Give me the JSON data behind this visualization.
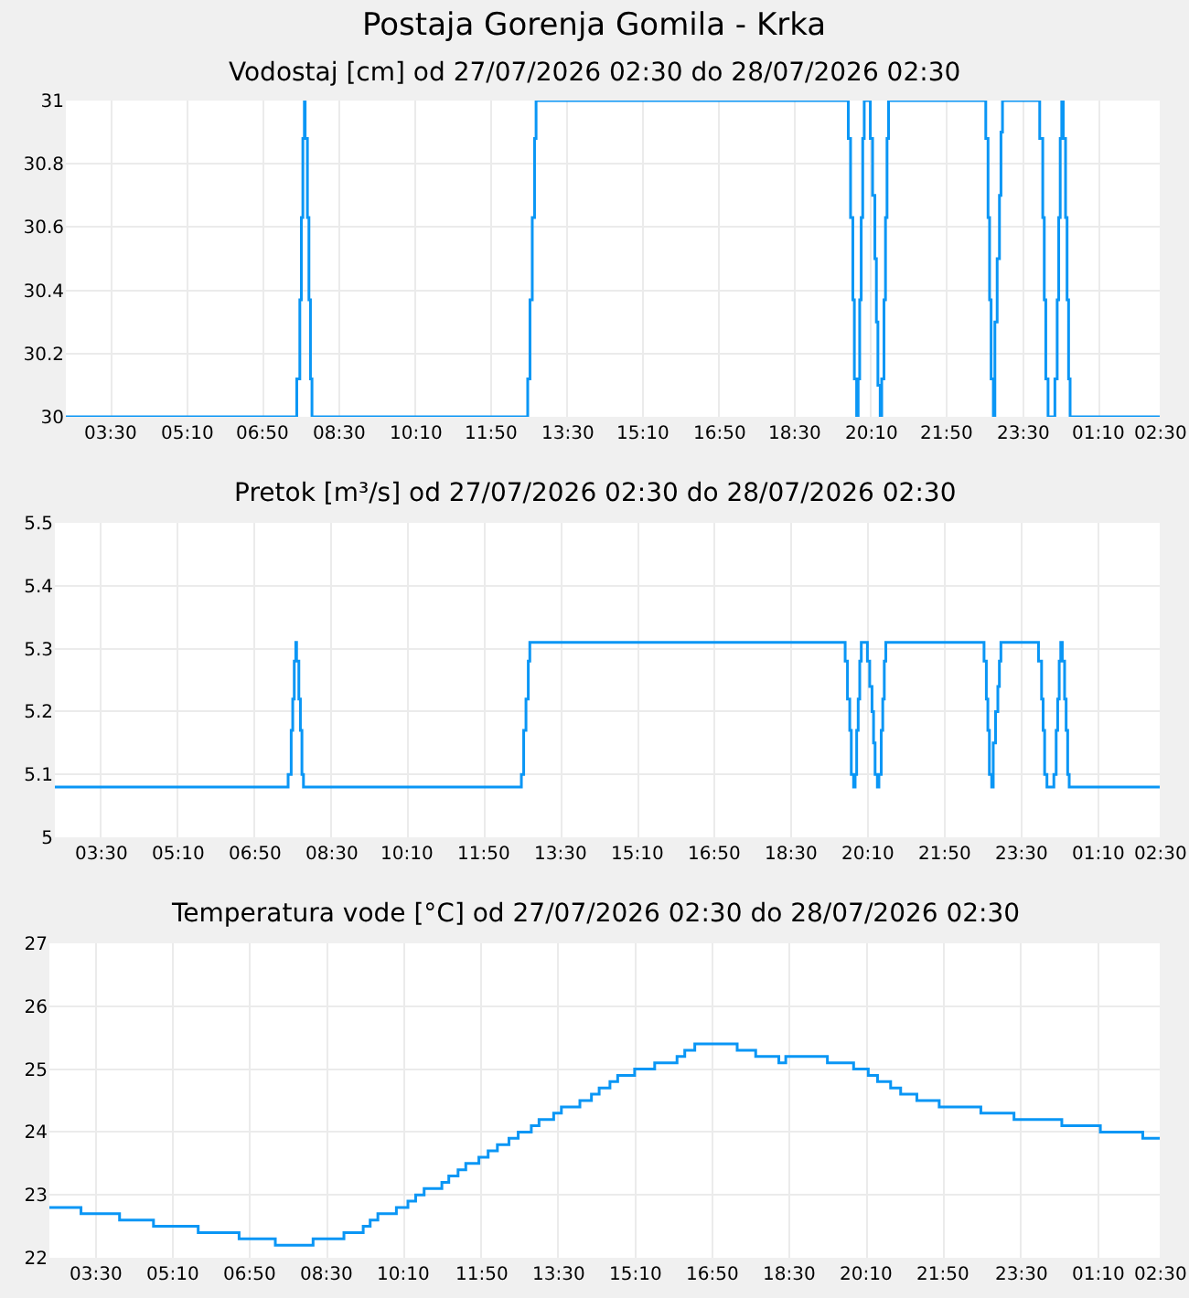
{
  "chart_data": [
    {
      "type": "step",
      "title": "Postaja Gorenja Gomila - Krka",
      "subtitle": "Vodostaj [cm] od 27/07/2026 02:30 do 28/07/2026 02:30",
      "x": [
        "2026-07-27T02:30",
        "2026-07-27T07:34",
        "2026-07-27T07:38",
        "2026-07-27T07:40",
        "2026-07-27T07:42",
        "2026-07-27T07:44",
        "2026-07-27T07:45",
        "2026-07-27T07:48",
        "2026-07-27T07:50",
        "2026-07-27T07:52",
        "2026-07-27T07:54",
        "2026-07-27T12:38",
        "2026-07-27T12:41",
        "2026-07-27T12:44",
        "2026-07-27T12:47",
        "2026-07-27T12:49",
        "2026-07-27T19:40",
        "2026-07-27T19:43",
        "2026-07-27T19:46",
        "2026-07-27T19:48",
        "2026-07-27T19:51",
        "2026-07-27T19:53",
        "2026-07-27T19:55",
        "2026-07-27T19:57",
        "2026-07-27T19:59",
        "2026-07-27T20:01",
        "2026-07-27T20:09",
        "2026-07-27T20:12",
        "2026-07-27T20:15",
        "2026-07-27T20:17",
        "2026-07-27T20:19",
        "2026-07-27T20:22",
        "2026-07-27T20:24",
        "2026-07-27T20:27",
        "2026-07-27T20:29",
        "2026-07-27T20:31",
        "2026-07-27T20:33",
        "2026-07-27T22:41",
        "2026-07-27T22:44",
        "2026-07-27T22:46",
        "2026-07-27T22:48",
        "2026-07-27T22:51",
        "2026-07-27T22:53",
        "2026-07-27T22:56",
        "2026-07-27T22:59",
        "2026-07-27T23:01",
        "2026-07-27T23:03",
        "2026-07-27T23:52",
        "2026-07-27T23:56",
        "2026-07-27T23:58",
        "2026-07-28T00:00",
        "2026-07-28T00:03",
        "2026-07-28T00:12",
        "2026-07-28T00:15",
        "2026-07-28T00:17",
        "2026-07-28T00:19",
        "2026-07-28T00:21",
        "2026-07-28T00:23",
        "2026-07-28T00:26",
        "2026-07-28T00:28",
        "2026-07-28T00:30",
        "2026-07-28T00:32",
        "2026-07-28T02:30"
      ],
      "series": [
        {
          "color": "#0a96f5",
          "values": [
            30,
            30.12,
            30.37,
            30.63,
            30.88,
            31,
            30.88,
            30.63,
            30.37,
            30.12,
            30,
            30.12,
            30.37,
            30.63,
            30.88,
            31,
            30.88,
            30.63,
            30.37,
            30.12,
            30,
            30.12,
            30.37,
            30.63,
            30.88,
            31,
            30.88,
            30.7,
            30.5,
            30.3,
            30.1,
            30,
            30.12,
            30.37,
            30.63,
            30.88,
            31,
            30.88,
            30.63,
            30.37,
            30.12,
            30,
            30.3,
            30.5,
            30.7,
            30.9,
            31,
            30.88,
            30.63,
            30.37,
            30.12,
            30,
            30.12,
            30.37,
            30.63,
            30.88,
            31,
            30.88,
            30.63,
            30.37,
            30.12,
            30,
            30
          ]
        }
      ],
      "xlim": [
        "2026-07-27T02:30",
        "2026-07-28T02:30"
      ],
      "xticks": [
        {
          "value": "2026-07-27T03:30",
          "label": "03:30"
        },
        {
          "value": "2026-07-27T05:10",
          "label": "05:10"
        },
        {
          "value": "2026-07-27T06:50",
          "label": "06:50"
        },
        {
          "value": "2026-07-27T08:30",
          "label": "08:30"
        },
        {
          "value": "2026-07-27T10:10",
          "label": "10:10"
        },
        {
          "value": "2026-07-27T11:50",
          "label": "11:50"
        },
        {
          "value": "2026-07-27T13:30",
          "label": "13:30"
        },
        {
          "value": "2026-07-27T15:10",
          "label": "15:10"
        },
        {
          "value": "2026-07-27T16:50",
          "label": "16:50"
        },
        {
          "value": "2026-07-27T18:30",
          "label": "18:30"
        },
        {
          "value": "2026-07-27T20:10",
          "label": "20:10"
        },
        {
          "value": "2026-07-27T21:50",
          "label": "21:50"
        },
        {
          "value": "2026-07-27T23:30",
          "label": "23:30"
        },
        {
          "value": "2026-07-28T01:10",
          "label": "01:10"
        },
        {
          "value": "2026-07-28T02:30",
          "label": "02:30"
        }
      ],
      "ylim": [
        30,
        31
      ],
      "yticks": [
        30,
        30.2,
        30.4,
        30.6,
        30.8,
        31
      ],
      "grid": true
    },
    {
      "type": "step",
      "title": "Pretok [m³/s] od 27/07/2026 02:30 do 28/07/2026 02:30",
      "x": [
        "2026-07-27T02:30",
        "2026-07-27T07:34",
        "2026-07-27T07:38",
        "2026-07-27T07:40",
        "2026-07-27T07:42",
        "2026-07-27T07:44",
        "2026-07-27T07:45",
        "2026-07-27T07:48",
        "2026-07-27T07:50",
        "2026-07-27T07:52",
        "2026-07-27T07:54",
        "2026-07-27T12:38",
        "2026-07-27T12:41",
        "2026-07-27T12:44",
        "2026-07-27T12:47",
        "2026-07-27T12:49",
        "2026-07-27T19:40",
        "2026-07-27T19:43",
        "2026-07-27T19:46",
        "2026-07-27T19:48",
        "2026-07-27T19:51",
        "2026-07-27T19:53",
        "2026-07-27T19:55",
        "2026-07-27T19:57",
        "2026-07-27T19:59",
        "2026-07-27T20:01",
        "2026-07-27T20:09",
        "2026-07-27T20:12",
        "2026-07-27T20:15",
        "2026-07-27T20:17",
        "2026-07-27T20:19",
        "2026-07-27T20:22",
        "2026-07-27T20:24",
        "2026-07-27T20:27",
        "2026-07-27T20:29",
        "2026-07-27T20:31",
        "2026-07-27T20:33",
        "2026-07-27T22:41",
        "2026-07-27T22:44",
        "2026-07-27T22:46",
        "2026-07-27T22:48",
        "2026-07-27T22:51",
        "2026-07-27T22:53",
        "2026-07-27T22:56",
        "2026-07-27T22:59",
        "2026-07-27T23:01",
        "2026-07-27T23:03",
        "2026-07-27T23:52",
        "2026-07-27T23:56",
        "2026-07-27T23:58",
        "2026-07-28T00:00",
        "2026-07-28T00:03",
        "2026-07-28T00:12",
        "2026-07-28T00:15",
        "2026-07-28T00:17",
        "2026-07-28T00:19",
        "2026-07-28T00:21",
        "2026-07-28T00:23",
        "2026-07-28T00:26",
        "2026-07-28T00:28",
        "2026-07-28T00:30",
        "2026-07-28T00:32",
        "2026-07-28T02:30"
      ],
      "series": [
        {
          "color": "#0a96f5",
          "values": [
            5.08,
            5.1,
            5.17,
            5.22,
            5.28,
            5.31,
            5.28,
            5.22,
            5.17,
            5.1,
            5.08,
            5.1,
            5.17,
            5.22,
            5.28,
            5.31,
            5.28,
            5.22,
            5.17,
            5.1,
            5.08,
            5.1,
            5.17,
            5.22,
            5.28,
            5.31,
            5.28,
            5.24,
            5.2,
            5.15,
            5.1,
            5.08,
            5.1,
            5.17,
            5.22,
            5.28,
            5.31,
            5.28,
            5.22,
            5.17,
            5.1,
            5.08,
            5.15,
            5.2,
            5.24,
            5.28,
            5.31,
            5.28,
            5.22,
            5.17,
            5.1,
            5.08,
            5.1,
            5.17,
            5.22,
            5.28,
            5.31,
            5.28,
            5.22,
            5.17,
            5.1,
            5.08,
            5.08
          ]
        }
      ],
      "xlim": [
        "2026-07-27T02:30",
        "2026-07-28T02:30"
      ],
      "xticks": [
        {
          "value": "2026-07-27T03:30",
          "label": "03:30"
        },
        {
          "value": "2026-07-27T05:10",
          "label": "05:10"
        },
        {
          "value": "2026-07-27T06:50",
          "label": "06:50"
        },
        {
          "value": "2026-07-27T08:30",
          "label": "08:30"
        },
        {
          "value": "2026-07-27T10:10",
          "label": "10:10"
        },
        {
          "value": "2026-07-27T11:50",
          "label": "11:50"
        },
        {
          "value": "2026-07-27T13:30",
          "label": "13:30"
        },
        {
          "value": "2026-07-27T15:10",
          "label": "15:10"
        },
        {
          "value": "2026-07-27T16:50",
          "label": "16:50"
        },
        {
          "value": "2026-07-27T18:30",
          "label": "18:30"
        },
        {
          "value": "2026-07-27T20:10",
          "label": "20:10"
        },
        {
          "value": "2026-07-27T21:50",
          "label": "21:50"
        },
        {
          "value": "2026-07-27T23:30",
          "label": "23:30"
        },
        {
          "value": "2026-07-28T01:10",
          "label": "01:10"
        },
        {
          "value": "2026-07-28T02:30",
          "label": "02:30"
        }
      ],
      "ylim": [
        5,
        5.5
      ],
      "yticks": [
        5,
        5.1,
        5.2,
        5.3,
        5.4,
        5.5
      ],
      "grid": true
    },
    {
      "type": "step",
      "title": "Temperatura vode [°C] od 27/07/2026 02:30 do 28/07/2026 02:30",
      "x": [
        "2026-07-27T02:30",
        "2026-07-27T03:11",
        "2026-07-27T04:01",
        "2026-07-27T04:45",
        "2026-07-27T05:43",
        "2026-07-27T06:36",
        "2026-07-27T07:23",
        "2026-07-27T08:12",
        "2026-07-27T08:52",
        "2026-07-27T09:17",
        "2026-07-27T09:26",
        "2026-07-27T09:36",
        "2026-07-27T10:00",
        "2026-07-27T10:15",
        "2026-07-27T10:25",
        "2026-07-27T10:36",
        "2026-07-27T10:59",
        "2026-07-27T11:08",
        "2026-07-27T11:20",
        "2026-07-27T11:30",
        "2026-07-27T11:47",
        "2026-07-27T11:59",
        "2026-07-27T12:11",
        "2026-07-27T12:26",
        "2026-07-27T12:38",
        "2026-07-27T12:55",
        "2026-07-27T13:05",
        "2026-07-27T13:24",
        "2026-07-27T13:34",
        "2026-07-27T13:58",
        "2026-07-27T14:13",
        "2026-07-27T14:23",
        "2026-07-27T14:37",
        "2026-07-27T14:47",
        "2026-07-27T15:09",
        "2026-07-27T15:35",
        "2026-07-27T16:04",
        "2026-07-27T16:14",
        "2026-07-27T16:27",
        "2026-07-27T17:22",
        "2026-07-27T17:46",
        "2026-07-27T18:16",
        "2026-07-27T18:25",
        "2026-07-27T19:19",
        "2026-07-27T19:53",
        "2026-07-27T20:12",
        "2026-07-27T20:24",
        "2026-07-27T20:41",
        "2026-07-27T20:54",
        "2026-07-27T21:15",
        "2026-07-27T21:44",
        "2026-07-27T22:38",
        "2026-07-27T23:21",
        "2026-07-28T00:23",
        "2026-07-28T01:13",
        "2026-07-28T02:08",
        "2026-07-28T02:30"
      ],
      "series": [
        {
          "color": "#0a96f5",
          "values": [
            22.8,
            22.7,
            22.6,
            22.5,
            22.4,
            22.3,
            22.2,
            22.3,
            22.4,
            22.5,
            22.6,
            22.7,
            22.8,
            22.9,
            23.0,
            23.1,
            23.2,
            23.3,
            23.4,
            23.5,
            23.6,
            23.7,
            23.8,
            23.9,
            24.0,
            24.1,
            24.2,
            24.3,
            24.4,
            24.5,
            24.6,
            24.7,
            24.8,
            24.9,
            25.0,
            25.1,
            25.2,
            25.3,
            25.4,
            25.3,
            25.2,
            25.1,
            25.2,
            25.1,
            25.0,
            24.9,
            24.8,
            24.7,
            24.6,
            24.5,
            24.4,
            24.3,
            24.2,
            24.1,
            24.0,
            23.9,
            23.9
          ]
        }
      ],
      "xlim": [
        "2026-07-27T02:30",
        "2026-07-28T02:30"
      ],
      "xticks": [
        {
          "value": "2026-07-27T03:30",
          "label": "03:30"
        },
        {
          "value": "2026-07-27T05:10",
          "label": "05:10"
        },
        {
          "value": "2026-07-27T06:50",
          "label": "06:50"
        },
        {
          "value": "2026-07-27T08:30",
          "label": "08:30"
        },
        {
          "value": "2026-07-27T10:10",
          "label": "10:10"
        },
        {
          "value": "2026-07-27T11:50",
          "label": "11:50"
        },
        {
          "value": "2026-07-27T13:30",
          "label": "13:30"
        },
        {
          "value": "2026-07-27T15:10",
          "label": "15:10"
        },
        {
          "value": "2026-07-27T16:50",
          "label": "16:50"
        },
        {
          "value": "2026-07-27T18:30",
          "label": "18:30"
        },
        {
          "value": "2026-07-27T20:10",
          "label": "20:10"
        },
        {
          "value": "2026-07-27T21:50",
          "label": "21:50"
        },
        {
          "value": "2026-07-27T23:30",
          "label": "23:30"
        },
        {
          "value": "2026-07-28T01:10",
          "label": "01:10"
        },
        {
          "value": "2026-07-28T02:30",
          "label": "02:30"
        }
      ],
      "ylim": [
        22,
        27
      ],
      "yticks": [
        22,
        23,
        24,
        25,
        26,
        27
      ],
      "grid": true
    }
  ]
}
